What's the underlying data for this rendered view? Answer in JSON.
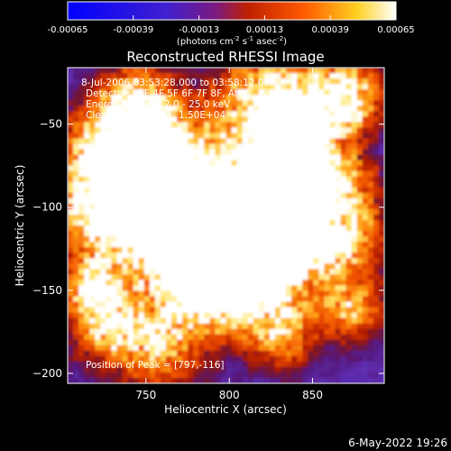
{
  "colorbar": {
    "tick_labels": [
      "-0.00065",
      "-0.00039",
      "-0.00013",
      "0.00013",
      "0.00039",
      "0.00065"
    ],
    "tick_values": [
      -0.00065,
      -0.00039,
      -0.00013,
      0.00013,
      0.00039,
      0.00065
    ],
    "range": [
      -0.00065,
      0.00065
    ],
    "unit_parts": [
      "(photons cm",
      "-2",
      " s",
      "-1",
      " asec",
      "-2",
      ")"
    ],
    "colors": [
      "#0000ff",
      "#6020c0",
      "#a02000",
      "#ff5a00",
      "#ffff60",
      "#ffffff"
    ]
  },
  "info": {
    "time": "8-Jul-2006 03:53:28.000 to 03:58:12.000",
    "detectors": "Detectors: 3F 4F 5F 6F 7F 8F, Att 0",
    "energy": "Energy Range: 12.0 - 25.0 keV",
    "clean": "Clean     Total counts: 1.50E+04",
    "peak": "Position of Peak = [797,-116]"
  },
  "footer": {
    "date": "6-May-2022 19:26"
  },
  "chart_data": {
    "type": "heatmap",
    "title": "Reconstructed RHESSI Image",
    "xlabel": "Heliocentric X (arcsec)",
    "ylabel": "Heliocentric Y (arcsec)",
    "xlim": [
      703,
      893
    ],
    "ylim": [
      -206,
      -16
    ],
    "x_ticks": [
      750,
      800,
      850
    ],
    "y_ticks": [
      -50,
      -100,
      -150,
      -200
    ],
    "x_tick_labels": [
      "750",
      "800",
      "850"
    ],
    "y_tick_labels": [
      "−50",
      "−100",
      "−150",
      "−200"
    ],
    "peak": {
      "x": 797,
      "y": -116
    },
    "value_range": [
      -0.00065,
      0.00065
    ],
    "grid": false
  }
}
